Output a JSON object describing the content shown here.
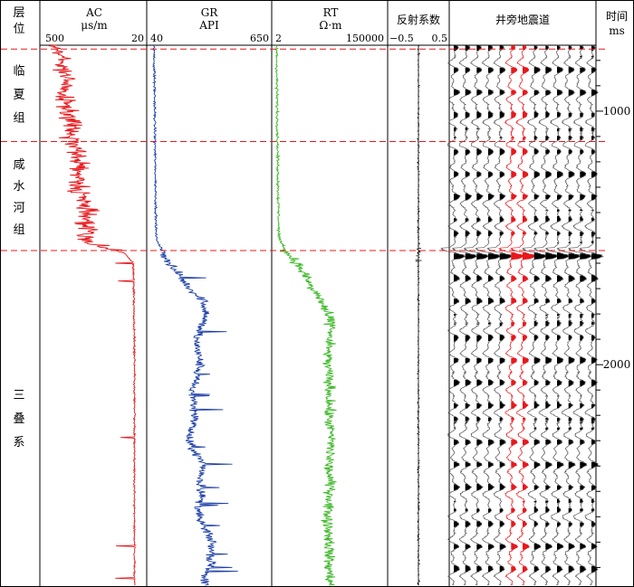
{
  "chart_data": {
    "type": "line",
    "columns": {
      "formation": "层\n位",
      "ac": {
        "name": "AC",
        "unit": "μs/m",
        "left_label": "500",
        "right_label": "20",
        "color": "#e8181d"
      },
      "gr": {
        "name": "GR",
        "unit": "API",
        "left_label": "40",
        "right_label": "650",
        "color": "#1c3fa8"
      },
      "rt": {
        "name": "RT",
        "unit": "Ω·m",
        "left_label": "2",
        "right_label": "150000",
        "color": "#3cb826"
      },
      "refl": {
        "name": "反射系数",
        "left_label": "−0.5",
        "right_label": "0.5"
      },
      "seismic": {
        "name": "井旁地震道"
      },
      "time": {
        "name": "时间",
        "unit": "ms",
        "ticks": [
          1000,
          2000
        ]
      }
    },
    "time_range": [
      740,
      2870
    ],
    "formations": [
      {
        "chars": [
          "临",
          "夏",
          "组"
        ],
        "top": 740,
        "bottom": 1120
      },
      {
        "chars": [
          "咸",
          "水",
          "河",
          "组"
        ],
        "top": 1120,
        "bottom": 1550
      },
      {
        "chars": [
          "三",
          "叠",
          "系"
        ],
        "top": 1550,
        "bottom": 2870
      }
    ],
    "boundaries_ms": [
      755,
      1120,
      1550
    ],
    "ac_profile": [
      [
        750,
        420
      ],
      [
        800,
        400
      ],
      [
        880,
        380
      ],
      [
        950,
        390
      ],
      [
        1000,
        370
      ],
      [
        1080,
        360
      ],
      [
        1150,
        340
      ],
      [
        1230,
        310
      ],
      [
        1300,
        330
      ],
      [
        1380,
        300
      ],
      [
        1450,
        290
      ],
      [
        1520,
        280
      ],
      [
        1560,
        120
      ],
      [
        1600,
        80
      ],
      [
        2000,
        75
      ],
      [
        2500,
        75
      ],
      [
        2850,
        75
      ]
    ],
    "gr_profile": [
      [
        750,
        75
      ],
      [
        900,
        78
      ],
      [
        1100,
        80
      ],
      [
        1300,
        83
      ],
      [
        1500,
        86
      ],
      [
        1560,
        120
      ],
      [
        1620,
        170
      ],
      [
        1700,
        250
      ],
      [
        1750,
        320
      ],
      [
        1800,
        330
      ],
      [
        1900,
        280
      ],
      [
        2000,
        300
      ],
      [
        2100,
        260
      ],
      [
        2200,
        280
      ],
      [
        2300,
        240
      ],
      [
        2400,
        320
      ],
      [
        2450,
        300
      ],
      [
        2500,
        310
      ],
      [
        2600,
        290
      ],
      [
        2700,
        360
      ],
      [
        2800,
        350
      ],
      [
        2850,
        320
      ]
    ],
    "rt_profile": [
      [
        750,
        3.2
      ],
      [
        900,
        3.3
      ],
      [
        1100,
        3.5
      ],
      [
        1300,
        3.7
      ],
      [
        1500,
        4.0
      ],
      [
        1560,
        8
      ],
      [
        1620,
        30
      ],
      [
        1700,
        90
      ],
      [
        1800,
        400
      ],
      [
        1850,
        700
      ],
      [
        1900,
        500
      ],
      [
        2000,
        450
      ],
      [
        2100,
        550
      ],
      [
        2200,
        500
      ],
      [
        2300,
        650
      ],
      [
        2400,
        500
      ],
      [
        2500,
        600
      ],
      [
        2600,
        450
      ],
      [
        2700,
        550
      ],
      [
        2800,
        500
      ],
      [
        2850,
        600
      ]
    ],
    "seismic_strong_ms": [
      1550,
      1580
    ]
  }
}
